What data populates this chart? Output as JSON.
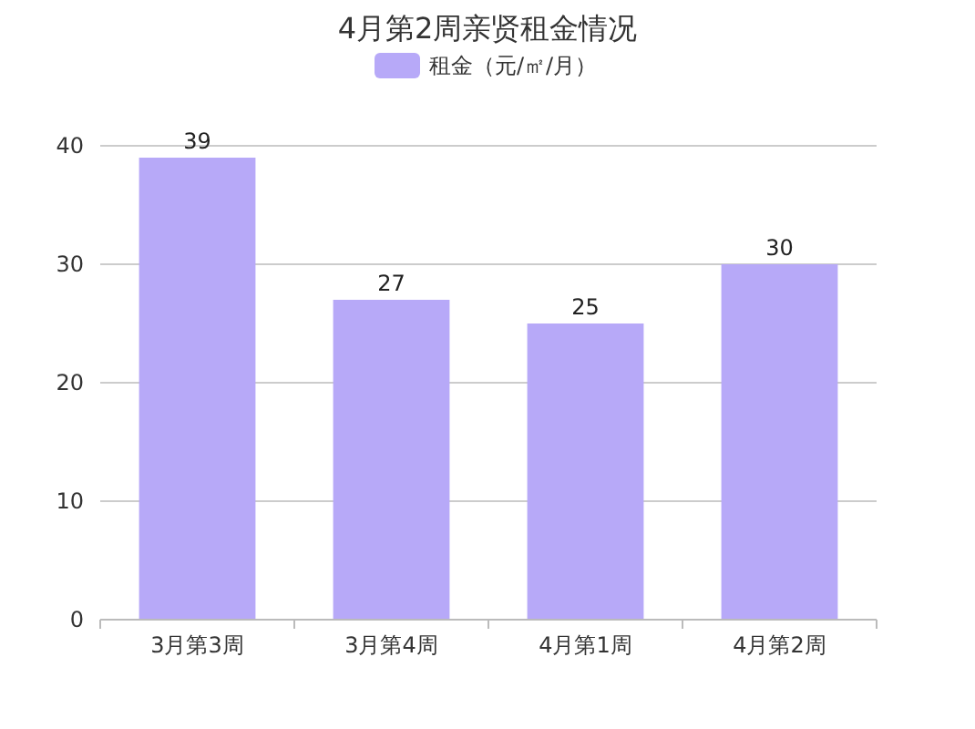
{
  "chart_data": {
    "type": "bar",
    "title": "4月第2周亲贤租金情况",
    "categories": [
      "3月第3周",
      "3月第4周",
      "4月第1周",
      "4月第2周"
    ],
    "series": [
      {
        "name": "租金（元/㎡/月）",
        "color": "#b7a9f8",
        "values": [
          39,
          27,
          25,
          30
        ]
      }
    ],
    "ylim": [
      0,
      40
    ],
    "yticks": [
      0,
      10,
      20,
      30,
      40
    ],
    "grid": "y",
    "legend": "top",
    "data_labels": true
  }
}
